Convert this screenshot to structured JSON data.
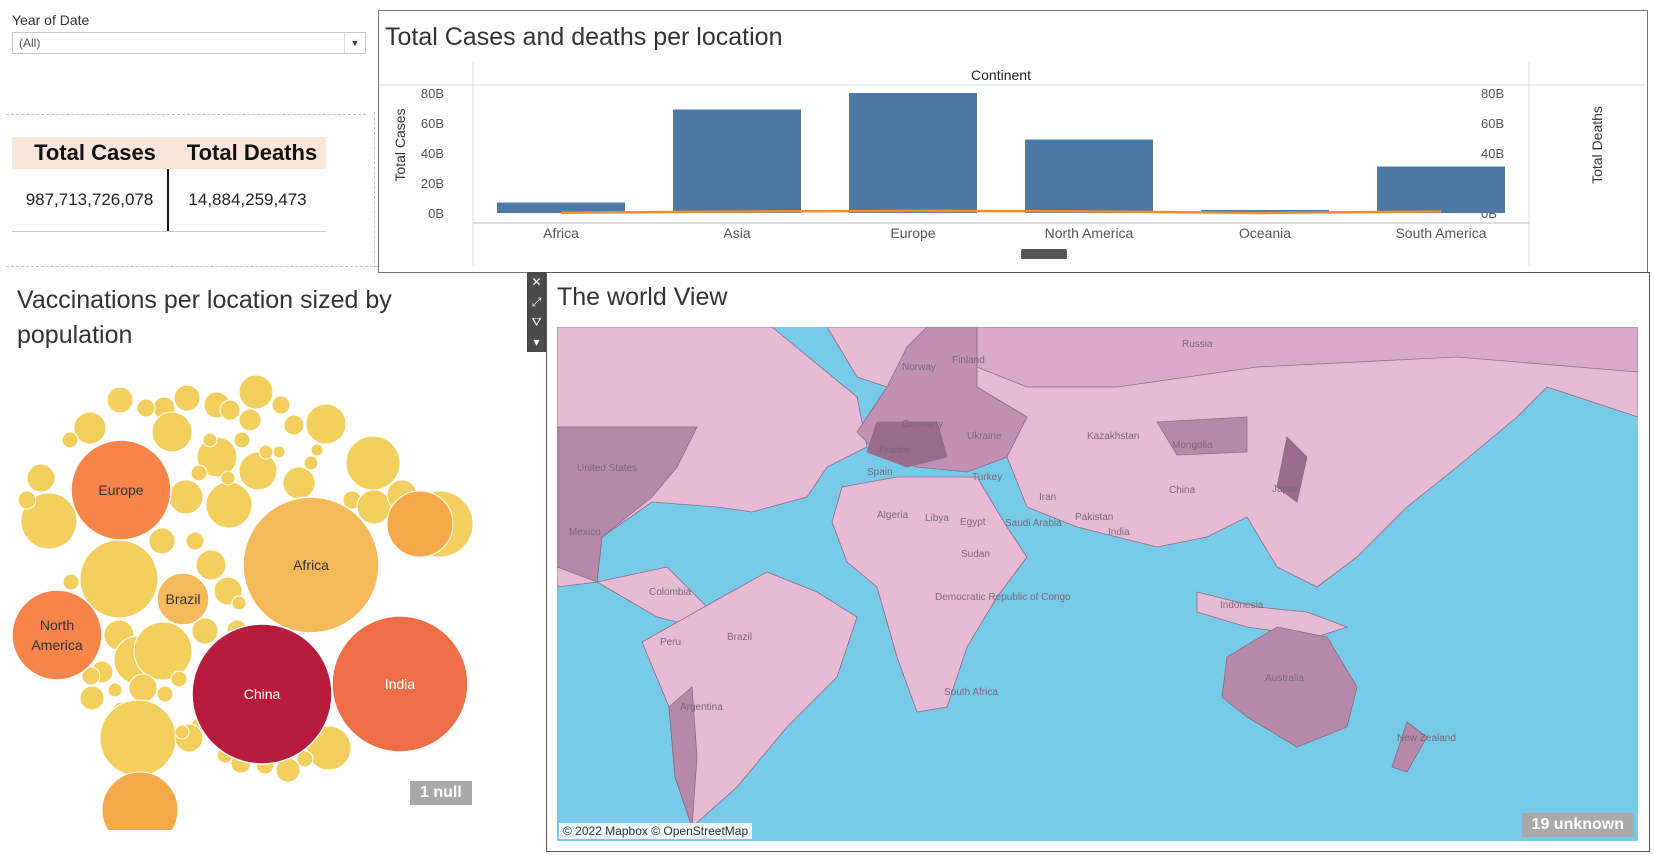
{
  "filter": {
    "label": "Year of Date",
    "value": "(All)"
  },
  "totals": {
    "headers": [
      "Total Cases",
      "Total Deaths"
    ],
    "values": [
      "987,713,726,078",
      "14,884,259,473"
    ]
  },
  "bar_chart": {
    "title": "Total Cases and deaths per location",
    "header": "Continent",
    "left_axis_label": "Total Cases",
    "right_axis_label": "Total Deaths"
  },
  "bubble_chart": {
    "title": "Vaccinations per location sized by population",
    "null_badge": "1 null"
  },
  "map": {
    "title": "The world View",
    "attribution": "© 2022 Mapbox © OpenStreetMap",
    "unknown_badge": "19 unknown",
    "labels": [
      "Russia",
      "Norway",
      "Finland",
      "Germany",
      "France",
      "Spain",
      "Ukraine",
      "Kazakhstan",
      "Mongolia",
      "Turkey",
      "United States",
      "Algeria",
      "Libya",
      "Egypt",
      "Saudi Arabia",
      "Iran",
      "Pakistan",
      "China",
      "Japan",
      "India",
      "Mexico",
      "Sudan",
      "Colombia",
      "Democratic Republic of Congo",
      "Brazil",
      "Peru",
      "Indonesia",
      "Australia",
      "South Africa",
      "Argentina",
      "New Zealand"
    ]
  },
  "colors": {
    "bar": "#4e79a7",
    "line": "#f28e2b",
    "ocean": "#77cbe9",
    "land": "#e6bcd4",
    "land_dark": "#b58aa9"
  },
  "chart_data": [
    {
      "type": "bar",
      "categories": [
        "Africa",
        "Asia",
        "Europe",
        "North America",
        "Oceania",
        "South America"
      ],
      "series": [
        {
          "name": "Total Cases",
          "values": [
            7,
            69,
            80,
            49,
            2,
            31
          ]
        },
        {
          "name": "Total Deaths",
          "values": [
            0.15,
            1.0,
            1.4,
            1.1,
            0.02,
            1.0
          ]
        }
      ],
      "yticks": [
        "80B",
        "60B",
        "40B",
        "20B",
        "0B"
      ],
      "ylim": [
        0,
        80
      ]
    },
    {
      "type": "bubble",
      "labeled_bubbles": [
        {
          "label": "Europe",
          "size": 50,
          "color": "#f5854a"
        },
        {
          "label": "Africa",
          "size": 68,
          "color": "#f5b95a"
        },
        {
          "label": "Brazil",
          "size": 27,
          "color": "#f5b95a"
        },
        {
          "label": "North America",
          "size": 45,
          "color": "#f5854a"
        },
        {
          "label": "China",
          "size": 70,
          "color": "#b81c3c"
        },
        {
          "label": "India",
          "size": 68,
          "color": "#ee6e4a"
        }
      ]
    }
  ]
}
